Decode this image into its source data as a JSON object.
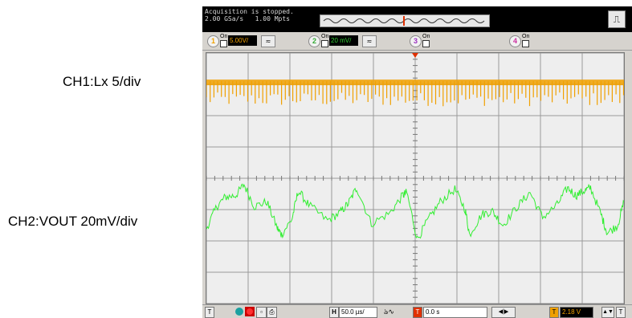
{
  "side_labels": {
    "ch1": "CH1:Lx 5/div",
    "ch2": "CH2:VOUT 20mV/div"
  },
  "status": {
    "line1": "Acquisition is stopped.",
    "line2": "2.00 GSa/s   1.00 Mpts"
  },
  "toolbar": {
    "trigger_icon": "pulse-trigger-icon"
  },
  "channels": [
    {
      "num": "1",
      "on": "On",
      "scale": "5.00V/",
      "color": "#f0a000"
    },
    {
      "num": "2",
      "on": "On",
      "scale": "20 mV/",
      "color": "#33cc33"
    },
    {
      "num": "3",
      "on": "On",
      "color": "#9b2fc0"
    },
    {
      "num": "4",
      "on": "On",
      "color": "#cc2fa0"
    }
  ],
  "bottom": {
    "ch_marker_left": "T",
    "h_label": "H",
    "timebase": "50.0 µs/",
    "trig_label": "T",
    "delay": "0.0 s",
    "level_label": "T",
    "trig_level": "2.18 V",
    "ch_marker_right": "T"
  },
  "colors": {
    "ch1": "#f0a000",
    "ch2": "#33ee33",
    "grid_bg": "#eeeeee",
    "grid_line": "#9a9a9a",
    "trigger_marker": "#e03000"
  },
  "chart_data": {
    "type": "line",
    "title": "",
    "xlabel": "",
    "ylabel": "",
    "divisions": {
      "x": 10,
      "y": 8
    },
    "timebase_per_div": "50.0 µs/",
    "xlim_div": [
      -5,
      5
    ],
    "ylim_div": [
      -4,
      4
    ],
    "grid": true,
    "series": [
      {
        "name": "CH1:Lx 5/div",
        "channel": 1,
        "color": "#f0a000",
        "kind": "switching",
        "high_div": 3.1,
        "low_div": 2.3,
        "pulse_period_div": 0.09
      },
      {
        "name": "CH2:VOUT 20mV/div",
        "channel": 2,
        "color": "#33ee33",
        "kind": "ripple",
        "x_div": [
          -5,
          -4.75,
          -4.55,
          -4.3,
          -4.1,
          -3.85,
          -3.55,
          -3.3,
          -3.2,
          -2.95,
          -2.8,
          -2.55,
          -2.1,
          -1.8,
          -1.6,
          -1.4,
          -1.05,
          -0.6,
          -0.3,
          -0.2,
          0.05,
          0.3,
          0.6,
          0.95,
          1.2,
          1.3,
          1.6,
          1.85,
          2.1,
          2.45,
          2.75,
          3.05,
          3.4,
          3.65,
          3.85,
          4.05,
          4.2,
          4.45,
          4.6,
          4.85,
          5
        ],
        "y_div": [
          -1.6,
          -0.9,
          -0.6,
          -0.55,
          -0.2,
          -0.9,
          -0.75,
          -1.6,
          -1.8,
          -1.3,
          -0.4,
          -0.85,
          -1.35,
          -1.1,
          -0.8,
          -0.3,
          -1.45,
          -1.1,
          -0.55,
          -0.45,
          -1.95,
          -1.35,
          -0.75,
          -0.35,
          -1.0,
          -1.8,
          -1.15,
          -1.05,
          -1.5,
          -0.9,
          -0.45,
          -1.25,
          -0.85,
          -0.3,
          -0.55,
          -0.4,
          -0.3,
          -1.15,
          -1.75,
          -1.5,
          -0.75
        ]
      }
    ]
  }
}
